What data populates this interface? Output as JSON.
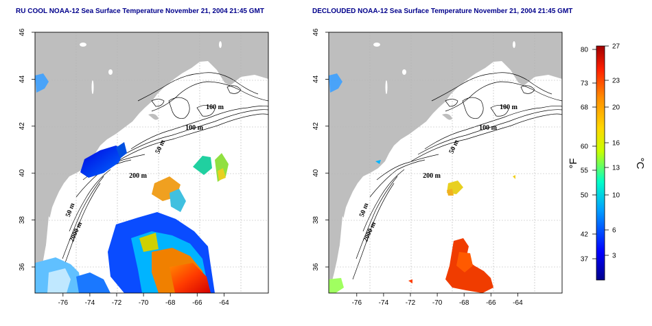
{
  "left_panel": {
    "title": "RU COOL NOAA-12 Sea Surface Temperature November 21, 2004 21:45 GMT"
  },
  "right_panel": {
    "title": "DECLOUDED NOAA-12 Sea Surface Temperature November 21, 2004 21:45 GMT"
  },
  "axes": {
    "lon_ticks": [
      "-76",
      "-74",
      "-72",
      "-70",
      "-68",
      "-66",
      "-64"
    ],
    "lat_ticks": [
      "36",
      "38",
      "40",
      "42",
      "44",
      "46"
    ]
  },
  "contour_labels": {
    "c100a": "100 m",
    "c100b": "100 m",
    "c50a": "50 m",
    "c200": "200 m",
    "c50b": "50 m",
    "c2000": "2000 m"
  },
  "colorbar": {
    "fahrenheit_unit": "°F",
    "celsius_unit": "°C",
    "fahrenheit_ticks": [
      "80",
      "73",
      "68",
      "60",
      "55",
      "50",
      "42",
      "37"
    ],
    "celsius_ticks": [
      "27",
      "23",
      "20",
      "16",
      "13",
      "10",
      "6",
      "3"
    ]
  },
  "colors": {
    "land": "#bebebe",
    "ocean": "#ffffff",
    "title": "#00008b",
    "scale": [
      "#00008b",
      "#0000ff",
      "#00c8ff",
      "#00ffb4",
      "#c8ff00",
      "#ffd700",
      "#ff8c00",
      "#ff0000",
      "#b40000"
    ]
  }
}
